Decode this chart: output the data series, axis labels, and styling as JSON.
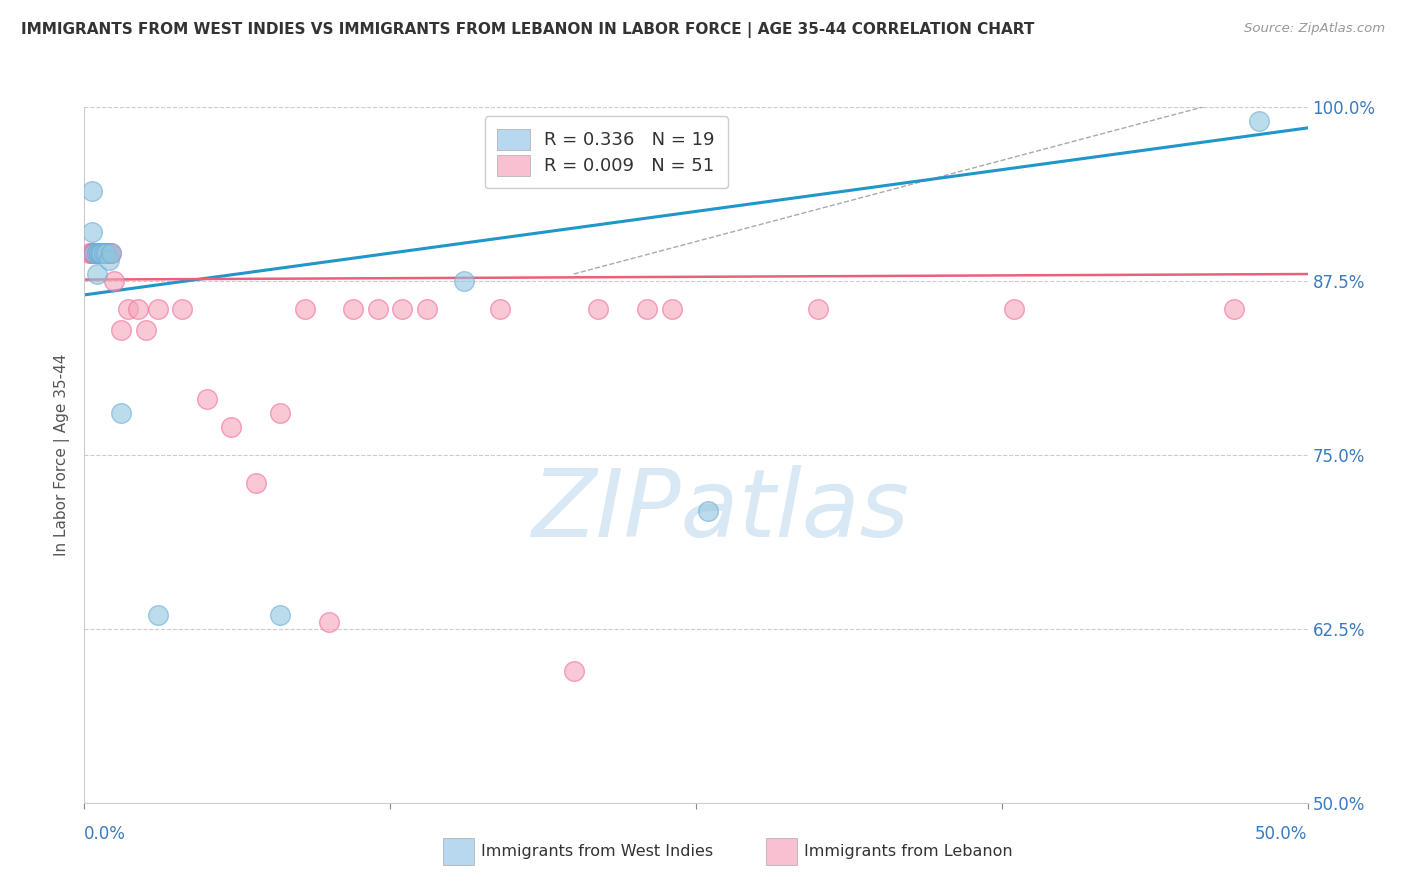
{
  "title": "IMMIGRANTS FROM WEST INDIES VS IMMIGRANTS FROM LEBANON IN LABOR FORCE | AGE 35-44 CORRELATION CHART",
  "source": "Source: ZipAtlas.com",
  "ylabel": "In Labor Force | Age 35-44",
  "xlim": [
    0.0,
    0.5
  ],
  "ylim": [
    0.5,
    1.0
  ],
  "xtick_vals": [
    0.0,
    0.125,
    0.25,
    0.375,
    0.5
  ],
  "xtick_labels_ends": [
    "0.0%",
    "50.0%"
  ],
  "ytick_labels": [
    "100.0%",
    "87.5%",
    "75.0%",
    "62.5%",
    "50.0%"
  ],
  "ytick_vals": [
    1.0,
    0.875,
    0.75,
    0.625,
    0.5
  ],
  "legend1_label": "R = 0.336   N = 19",
  "legend2_label": "R = 0.009   N = 51",
  "series1_color": "#92c5de",
  "series2_color": "#f4a6b8",
  "series1_edge": "#6baed6",
  "series2_edge": "#f768a1",
  "trendline1_color": "#2196c8",
  "trendline2_color": "#e8607a",
  "watermark_text": "ZIPatlas",
  "watermark_color": "#d8e8f5",
  "blue_scatter_x": [
    0.003,
    0.003,
    0.004,
    0.005,
    0.005,
    0.006,
    0.006,
    0.007,
    0.007,
    0.008,
    0.009,
    0.01,
    0.011,
    0.015,
    0.03,
    0.08,
    0.155,
    0.255,
    0.48
  ],
  "blue_scatter_y": [
    0.94,
    0.91,
    0.895,
    0.895,
    0.88,
    0.895,
    0.895,
    0.895,
    0.895,
    0.895,
    0.895,
    0.89,
    0.895,
    0.78,
    0.635,
    0.635,
    0.875,
    0.71,
    0.99
  ],
  "pink_scatter_x": [
    0.002,
    0.003,
    0.003,
    0.004,
    0.004,
    0.005,
    0.005,
    0.005,
    0.005,
    0.005,
    0.006,
    0.006,
    0.007,
    0.007,
    0.007,
    0.007,
    0.007,
    0.008,
    0.008,
    0.008,
    0.009,
    0.009,
    0.01,
    0.01,
    0.01,
    0.011,
    0.012,
    0.015,
    0.018,
    0.022,
    0.025,
    0.03,
    0.04,
    0.05,
    0.06,
    0.07,
    0.08,
    0.09,
    0.1,
    0.11,
    0.12,
    0.13,
    0.14,
    0.17,
    0.2,
    0.21,
    0.23,
    0.24,
    0.3,
    0.38,
    0.47
  ],
  "pink_scatter_y": [
    0.895,
    0.895,
    0.895,
    0.895,
    0.895,
    0.895,
    0.895,
    0.895,
    0.895,
    0.895,
    0.895,
    0.895,
    0.895,
    0.895,
    0.895,
    0.895,
    0.895,
    0.895,
    0.895,
    0.895,
    0.895,
    0.895,
    0.895,
    0.895,
    0.895,
    0.895,
    0.875,
    0.84,
    0.855,
    0.855,
    0.84,
    0.855,
    0.855,
    0.79,
    0.77,
    0.73,
    0.78,
    0.855,
    0.63,
    0.855,
    0.855,
    0.855,
    0.855,
    0.855,
    0.595,
    0.855,
    0.855,
    0.855,
    0.855,
    0.855,
    0.855
  ],
  "blue_trend_x": [
    0.0,
    0.5
  ],
  "blue_trend_y": [
    0.865,
    0.985
  ],
  "pink_trend_x": [
    0.0,
    0.5
  ],
  "pink_trend_y": [
    0.876,
    0.88
  ],
  "ref_line_x": [
    0.2,
    0.5
  ],
  "ref_line_y": [
    0.88,
    1.02
  ],
  "background_color": "#ffffff",
  "grid_color": "#cccccc",
  "bottom_legend1": "Immigrants from West Indies",
  "bottom_legend2": "Immigrants from Lebanon",
  "legend_patch1_color": "#b8d8f0",
  "legend_patch2_color": "#f8c0d0"
}
